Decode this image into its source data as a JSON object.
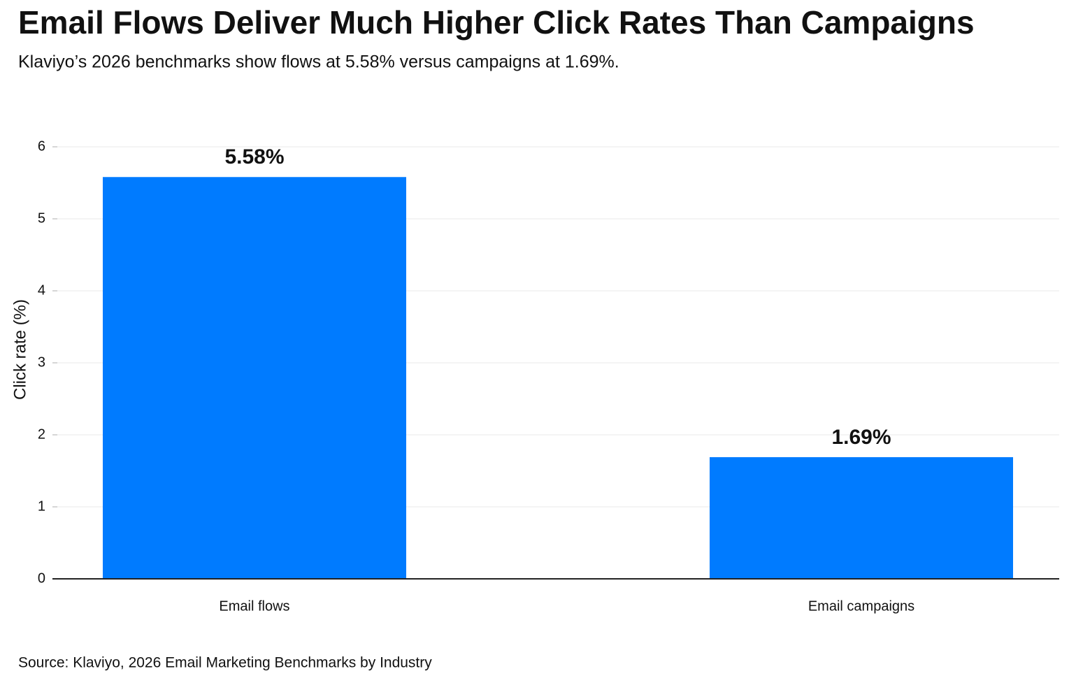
{
  "chart_data": {
    "type": "bar",
    "title": "Email Flows Deliver Much Higher Click Rates Than Campaigns",
    "subtitle": "Klaviyo’s 2026 benchmarks show flows at 5.58% versus campaigns at 1.69%.",
    "y_label": "Click rate (%)",
    "categories": [
      "Email flows",
      "Email campaigns"
    ],
    "values": [
      5.58,
      1.69
    ],
    "value_labels": [
      "5.58%",
      "1.69%"
    ],
    "color": "#007bff",
    "ylim": [
      0,
      6
    ],
    "yticks": [
      0,
      1,
      2,
      3,
      4,
      5,
      6
    ],
    "grid": true,
    "source": "Source: Klaviyo, 2026 Email Marketing Benchmarks by Industry"
  }
}
